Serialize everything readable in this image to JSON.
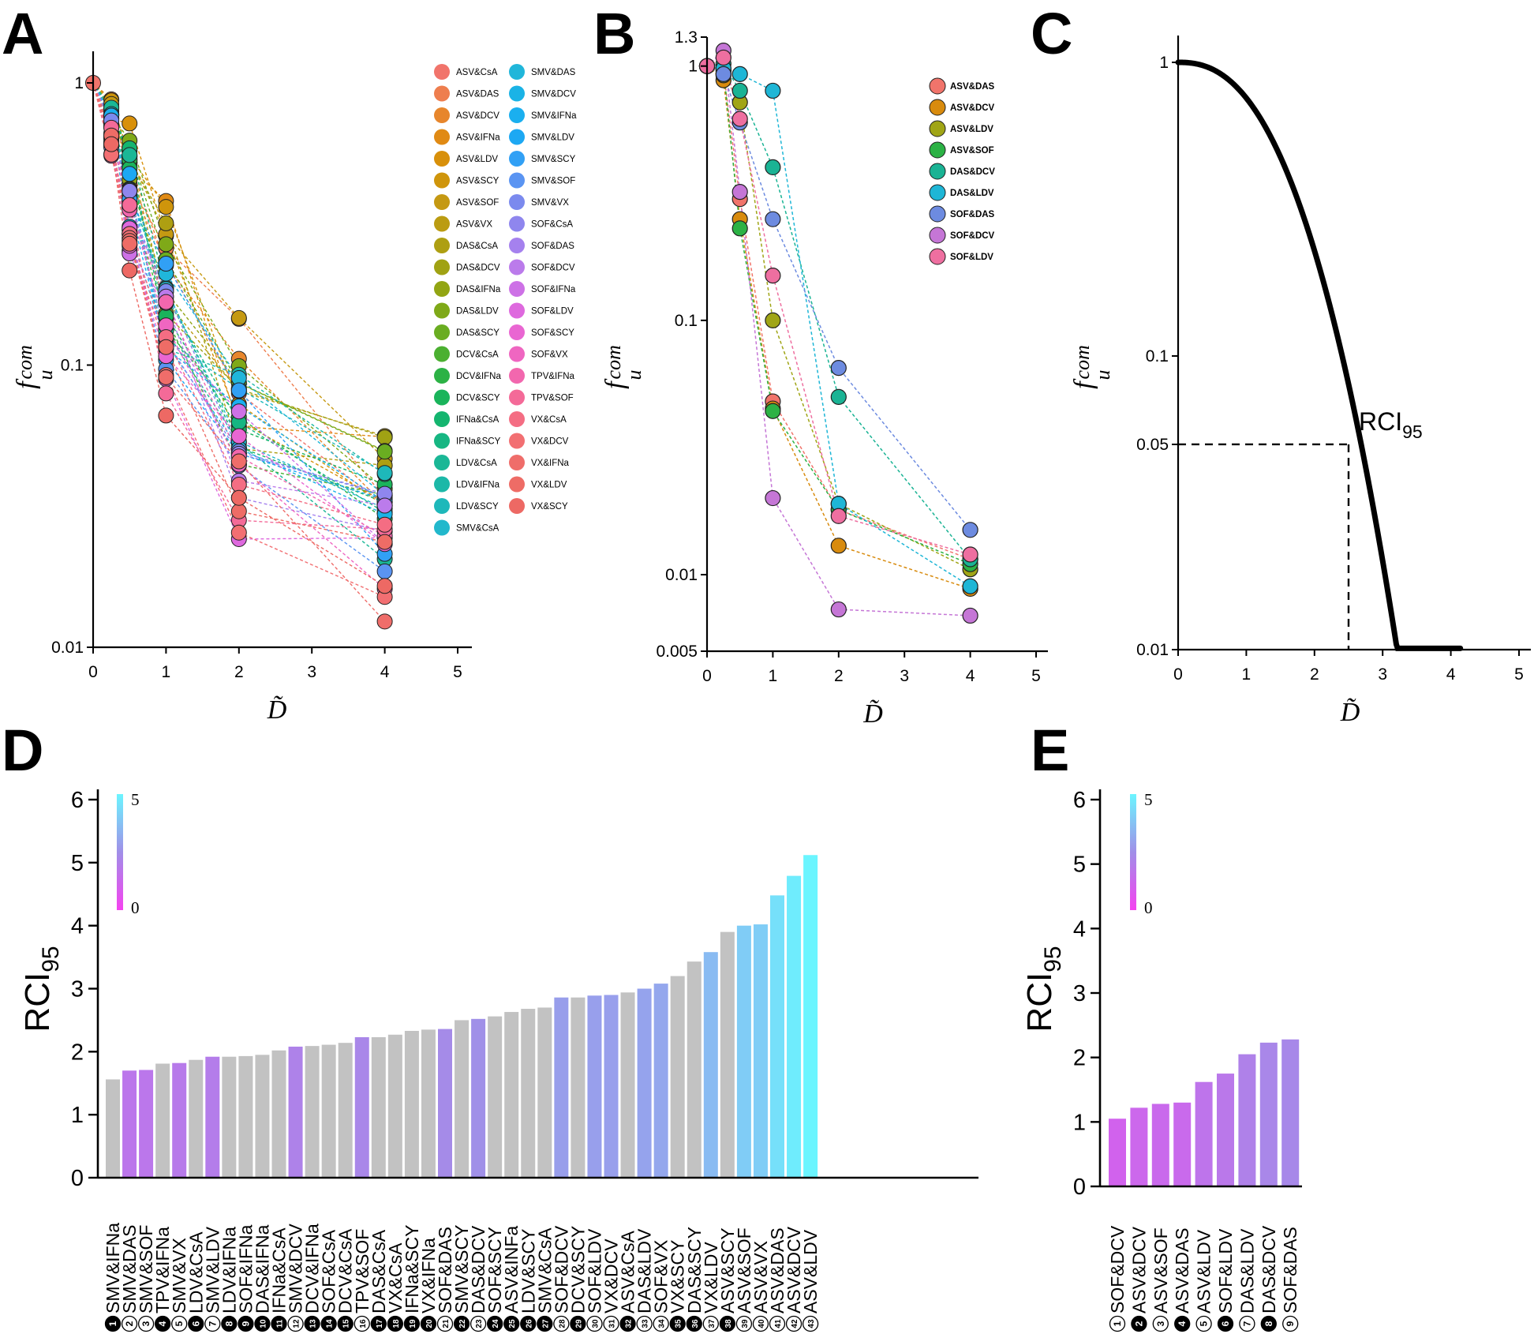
{
  "panel_labels": [
    "A",
    "B",
    "C",
    "D",
    "E"
  ],
  "axis_text": {
    "x": "D̃",
    "y": "f",
    "sup": "com",
    "sub": "u",
    "rci": "RCI",
    "rci_sub": "95"
  },
  "colorbar": {
    "max": "5",
    "min": "0"
  },
  "chart_data": [
    {
      "id": "A",
      "type": "scatter",
      "log_y": true,
      "x_ticks": [
        0,
        1,
        2,
        3,
        4,
        5
      ],
      "y_ticks": [
        1,
        0.1,
        0.01
      ],
      "ylim": [
        0.01,
        1.2
      ],
      "xlim": [
        0,
        5
      ],
      "legend": [
        "ASV&CsA",
        "ASV&DAS",
        "ASV&DCV",
        "ASV&IFNa",
        "ASV&LDV",
        "ASV&SCY",
        "ASV&SOF",
        "ASV&VX",
        "DAS&CsA",
        "DAS&DCV",
        "DAS&IFNa",
        "DAS&LDV",
        "DAS&SCY",
        "DCV&CsA",
        "DCV&IFNa",
        "DCV&SCY",
        "IFNa&CsA",
        "IFNa&SCY",
        "LDV&CsA",
        "LDV&IFNa",
        "LDV&SCY",
        "SMV&CsA",
        "SMV&DAS",
        "SMV&DCV",
        "SMV&IFNa",
        "SMV&LDV",
        "SMV&SCY",
        "SMV&SOF",
        "SMV&VX",
        "SOF&CsA",
        "SOF&DAS",
        "SOF&DCV",
        "SOF&IFNa",
        "SOF&LDV",
        "SOF&SCY",
        "SOF&VX",
        "TPV&IFNa",
        "TPV&SOF",
        "VX&CsA",
        "VX&DCV",
        "VX&IFNa",
        "VX&LDV",
        "VX&SCY"
      ],
      "colors": [
        "#F1746B",
        "#EE7E4E",
        "#E7862C",
        "#E08A14",
        "#D8900A",
        "#CF950B",
        "#C59912",
        "#BB9C12",
        "#AE9F12",
        "#A0A213",
        "#92A513",
        "#7FA918",
        "#6AAD21",
        "#4BB031",
        "#2CB245",
        "#1AB45B",
        "#14B56F",
        "#16B682",
        "#1AB796",
        "#1CB8A8",
        "#1EB8BA",
        "#22B8CC",
        "#20B6DA",
        "#1AB3E6",
        "#1AAFEF",
        "#1DA8F3",
        "#31A0F5",
        "#5A94F2",
        "#7B8AEE",
        "#8F86EE",
        "#A581EE",
        "#BB7BEB",
        "#CD71E6",
        "#DE69DE",
        "#E966D2",
        "#EF66C1",
        "#F267AE",
        "#F46A98",
        "#F46D83",
        "#F26F72",
        "#EF6D6A",
        "#EE6C66",
        "#ED6964"
      ],
      "x_values": [
        0,
        0.25,
        0.5,
        1,
        2,
        4
      ],
      "series_min": [
        1,
        0.5,
        0.2,
        0.06,
        0.018,
        0.011
      ],
      "series_max": [
        1,
        0.95,
        0.8,
        0.45,
        0.18,
        0.07
      ]
    },
    {
      "id": "B",
      "type": "scatter",
      "log_y": true,
      "x_ticks": [
        0,
        1,
        2,
        3,
        4,
        5
      ],
      "y_ticks": [
        1.3,
        1,
        0.1,
        0.01,
        0.005
      ],
      "ylim": [
        0.005,
        1.3
      ],
      "xlim": [
        0,
        5
      ],
      "x": [
        0,
        0.25,
        0.5,
        1,
        2,
        4
      ],
      "series": [
        {
          "name": "ASV&DAS",
          "color": "#F1746B",
          "values": [
            1,
            0.95,
            0.3,
            0.048,
            0.018,
            0.0115
          ]
        },
        {
          "name": "ASV&DCV",
          "color": "#D88B0E",
          "values": [
            1,
            0.88,
            0.25,
            0.045,
            0.013,
            0.0088
          ]
        },
        {
          "name": "ASV&LDV",
          "color": "#A0A516",
          "values": [
            1,
            0.92,
            0.72,
            0.1,
            0.019,
            0.0105
          ]
        },
        {
          "name": "ASV&SOF",
          "color": "#2CB245",
          "values": [
            1,
            0.97,
            0.23,
            0.044,
            0.018,
            0.011
          ]
        },
        {
          "name": "DAS&DCV",
          "color": "#1AB394",
          "values": [
            1,
            1.02,
            0.8,
            0.4,
            0.05,
            0.0115
          ]
        },
        {
          "name": "DAS&LDV",
          "color": "#1EB6D6",
          "values": [
            1,
            0.98,
            0.93,
            0.8,
            0.019,
            0.009
          ]
        },
        {
          "name": "SOF&DAS",
          "color": "#6D8BE0",
          "values": [
            1,
            0.93,
            0.6,
            0.25,
            0.065,
            0.015
          ]
        },
        {
          "name": "SOF&DCV",
          "color": "#C576D6",
          "values": [
            1,
            1.15,
            0.32,
            0.02,
            0.0073,
            0.0069
          ]
        },
        {
          "name": "SOF&LDV",
          "color": "#EE6FA0",
          "values": [
            1,
            1.08,
            0.62,
            0.15,
            0.017,
            0.012
          ]
        }
      ]
    },
    {
      "id": "C",
      "type": "line",
      "log_y": true,
      "x_ticks": [
        0,
        1,
        2,
        3,
        4,
        5
      ],
      "y_ticks": [
        1,
        0.1,
        0.05,
        0.01
      ],
      "ylim": [
        0.01,
        1.2
      ],
      "xlim": [
        0,
        5
      ],
      "curve": "f = exp(-(x/1.7)^2.4)",
      "annotation": "RCI",
      "annotation_sub": "95",
      "threshold_y": 0.05,
      "threshold_x": 2.5
    },
    {
      "id": "D",
      "type": "bar",
      "ylim": [
        0,
        6
      ],
      "y_ticks": [
        0,
        1,
        2,
        3,
        4,
        5,
        6
      ],
      "categories": [
        "SMV&IFNa",
        "SMV&DAS",
        "SMV&SOF",
        "TPV&IFNa",
        "SMV&VX",
        "LDV&CsA",
        "SMV&LDV",
        "LDV&IFNa",
        "SOF&IFNa",
        "DAS&IFNa",
        "IFNa&CsA",
        "SMV&DCV",
        "DCV&IFNa",
        "SOF&CsA",
        "DCV&CsA",
        "TPV&SOF",
        "DAS&CsA",
        "VX&CsA",
        "IFNa&SCY",
        "VX&IFNa",
        "SOF&DAS",
        "SMV&SCY",
        "DAS&DCV",
        "SOF&SCY",
        "ASV&INFa",
        "LDV&SCY",
        "SMV&CsA",
        "SOF&DCV",
        "DCV&SCY",
        "SOF&LDV",
        "VX&DCV",
        "ASV&CsA",
        "DAS&LDV",
        "SOF&VX",
        "VX&SCY",
        "DAS&SCY",
        "VX&LDV",
        "ASV&SCY",
        "ASV&SOF",
        "ASV&VX",
        "ASV&DAS",
        "ASV&DCV",
        "ASV&LDV"
      ],
      "values": [
        1.56,
        1.7,
        1.71,
        1.81,
        1.82,
        1.87,
        1.92,
        1.92,
        1.93,
        1.95,
        2.02,
        2.08,
        2.09,
        2.11,
        2.14,
        2.23,
        2.23,
        2.27,
        2.33,
        2.35,
        2.36,
        2.5,
        2.52,
        2.56,
        2.63,
        2.68,
        2.7,
        2.86,
        2.86,
        2.89,
        2.9,
        2.94,
        3.0,
        3.08,
        3.2,
        3.43,
        3.58,
        3.9,
        4.0,
        4.02,
        4.48,
        4.79,
        5.12
      ],
      "highlight": [
        false,
        true,
        true,
        false,
        true,
        false,
        true,
        false,
        false,
        false,
        false,
        true,
        false,
        false,
        false,
        true,
        false,
        false,
        false,
        false,
        true,
        false,
        true,
        false,
        false,
        false,
        false,
        true,
        false,
        true,
        true,
        false,
        true,
        true,
        false,
        false,
        true,
        false,
        true,
        true,
        true,
        true,
        true
      ],
      "filled_numbers": [
        1,
        4,
        6,
        8,
        9,
        10,
        11,
        13,
        14,
        15,
        17,
        18,
        19,
        20,
        22,
        24,
        25,
        26,
        27,
        29,
        32,
        35,
        36,
        38
      ]
    },
    {
      "id": "E",
      "type": "bar",
      "ylim": [
        0,
        6
      ],
      "y_ticks": [
        0,
        1,
        2,
        3,
        4,
        5,
        6
      ],
      "categories": [
        "SOF&DCV",
        "ASV&DCV",
        "ASV&SOF",
        "ASV&DAS",
        "ASV&LDV",
        "SOF&LDV",
        "DAS&LDV",
        "DAS&DCV",
        "SOF&DAS"
      ],
      "values": [
        1.05,
        1.22,
        1.28,
        1.3,
        1.62,
        1.75,
        2.05,
        2.23,
        2.28
      ]
    }
  ]
}
